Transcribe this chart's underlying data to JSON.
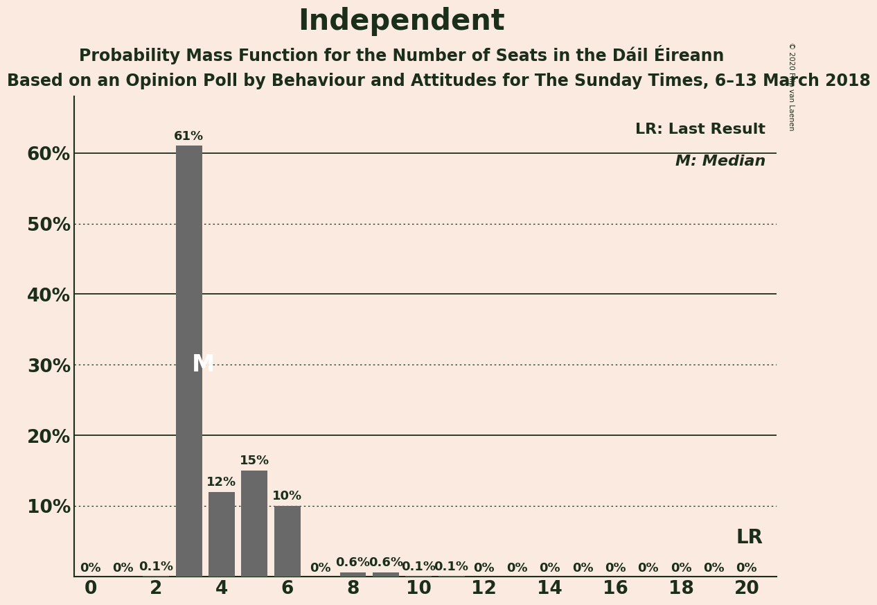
{
  "title": "Independent",
  "subtitle": "Probability Mass Function for the Number of Seats in the Dáil Éireann",
  "footnote": "Based on an Opinion Poll by Behaviour and Attitudes for The Sunday Times, 6–13 March 2018",
  "copyright": "© 2020 Filip van Laenen",
  "background_color": "#faeae0",
  "bar_color": "#696969",
  "categories": [
    0,
    1,
    2,
    3,
    4,
    5,
    6,
    7,
    8,
    9,
    10,
    11,
    12,
    13,
    14,
    15,
    16,
    17,
    18,
    19,
    20
  ],
  "values": [
    0.0,
    0.0,
    0.1,
    61.0,
    12.0,
    15.0,
    10.0,
    0.0,
    0.6,
    0.6,
    0.1,
    0.1,
    0.0,
    0.0,
    0.0,
    0.0,
    0.0,
    0.0,
    0.0,
    0.0,
    0.0
  ],
  "labels": [
    "0%",
    "0%",
    "0.1%",
    "61%",
    "12%",
    "15%",
    "10%",
    "0%",
    "0.6%",
    "0.6%",
    "0.1%",
    "0.1%",
    "0%",
    "0%",
    "0%",
    "0%",
    "0%",
    "0%",
    "0%",
    "0%",
    "0%"
  ],
  "yticks": [
    0,
    10,
    20,
    30,
    40,
    50,
    60
  ],
  "ytick_labels": [
    "",
    "10%",
    "20%",
    "30%",
    "40%",
    "50%",
    "60%"
  ],
  "xticks": [
    0,
    2,
    4,
    6,
    8,
    10,
    12,
    14,
    16,
    18,
    20
  ],
  "ylim": [
    0,
    68
  ],
  "xlim": [
    -0.5,
    20.9
  ],
  "median_seat": 3,
  "lr_seat": 19,
  "legend_lr": "LR: Last Result",
  "legend_m": "M: Median",
  "lr_label": "LR",
  "m_label": "M",
  "dotted_grid_values": [
    10,
    30,
    50
  ],
  "solid_grid_values": [
    20,
    40,
    60
  ],
  "title_fontsize": 30,
  "subtitle_fontsize": 17,
  "footnote_fontsize": 17,
  "axis_fontsize": 19,
  "bar_label_fontsize": 13,
  "legend_fontsize": 16,
  "marker_fontsize": 24,
  "lr_fontsize": 20,
  "text_color": "#1a2e1a"
}
